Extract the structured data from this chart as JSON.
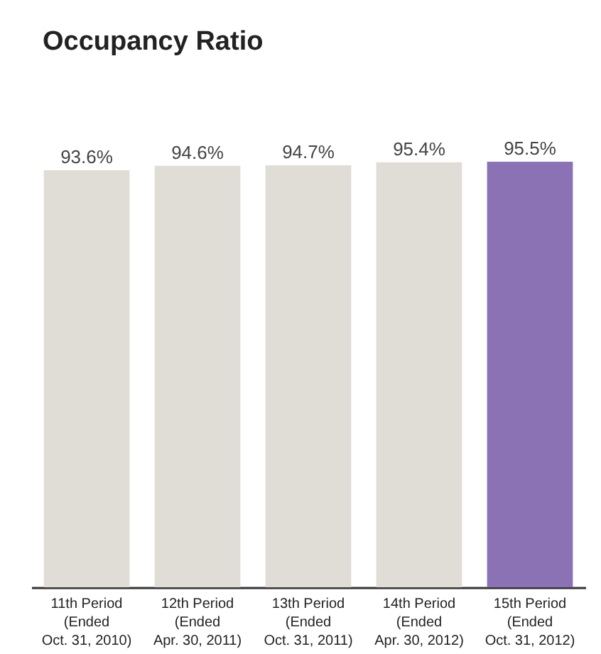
{
  "chart_data": {
    "type": "bar",
    "title": "Occupancy Ratio",
    "categories": [
      "11th Period\n(Ended\nOct. 31, 2010)",
      "12th Period\n(Ended\nApr. 30, 2011)",
      "13th Period\n(Ended\nOct. 31, 2011)",
      "14th Period\n(Ended\nApr. 30, 2012)",
      "15th Period\n(Ended\nOct. 31, 2012)"
    ],
    "values": [
      93.6,
      94.6,
      94.7,
      95.4,
      95.5
    ],
    "colors": [
      "#e0ddd6",
      "#e0ddd6",
      "#e0ddd6",
      "#e0ddd6",
      "#8a72b5"
    ],
    "value_labels": [
      "93.6%",
      "94.6%",
      "94.7%",
      "95.4%",
      "95.5%"
    ]
  }
}
